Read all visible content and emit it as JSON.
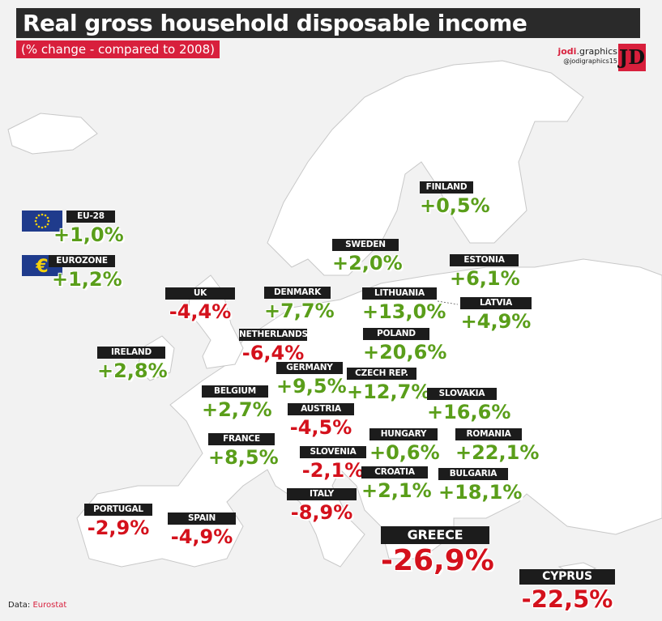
{
  "header": {
    "title": "Real gross household disposable income",
    "subtitle": "(% change - compared to 2008)"
  },
  "brand": {
    "name_bold": "jodi",
    "name_rest": ".graphics",
    "handle": "@jodigraphics15",
    "logo_text": "JD"
  },
  "source": {
    "label": "Data:",
    "name": "Eurostat"
  },
  "colors": {
    "positive": "#5a9e1a",
    "negative": "#d4111c",
    "accent": "#d81f3c",
    "label_bg": "#1c1c1c",
    "map_fill": "#ffffff",
    "sea": "#f2f2f2"
  },
  "aggregates": [
    {
      "id": "eu28",
      "name": "EU-28",
      "value": "+1,0%",
      "icon": "eu-flag-icon"
    },
    {
      "id": "eurozone",
      "name": "EUROZONE",
      "value": "+1,2%",
      "icon": "euro-sign-icon"
    }
  ],
  "countries": [
    {
      "id": "finland",
      "name": "FINLAND",
      "value": "+0,5%"
    },
    {
      "id": "sweden",
      "name": "SWEDEN",
      "value": "+2,0%"
    },
    {
      "id": "estonia",
      "name": "ESTONIA",
      "value": "+6,1%"
    },
    {
      "id": "uk",
      "name": "UK",
      "value": "-4,4%"
    },
    {
      "id": "denmark",
      "name": "DENMARK",
      "value": "+7,7%"
    },
    {
      "id": "lithuania",
      "name": "LITHUANIA",
      "value": "+13,0%"
    },
    {
      "id": "latvia",
      "name": "LATVIA",
      "value": "+4,9%"
    },
    {
      "id": "netherlands",
      "name": "NETHERLANDS",
      "value": "-6,4%"
    },
    {
      "id": "poland",
      "name": "POLAND",
      "value": "+20,6%"
    },
    {
      "id": "ireland",
      "name": "IRELAND",
      "value": "+2,8%"
    },
    {
      "id": "germany",
      "name": "GERMANY",
      "value": "+9,5%"
    },
    {
      "id": "czech",
      "name": "CZECH REP.",
      "value": "+12,7%"
    },
    {
      "id": "belgium",
      "name": "BELGIUM",
      "value": "+2,7%"
    },
    {
      "id": "austria",
      "name": "AUSTRIA",
      "value": "-4,5%"
    },
    {
      "id": "slovakia",
      "name": "SLOVAKIA",
      "value": "+16,6%"
    },
    {
      "id": "france",
      "name": "FRANCE",
      "value": "+8,5%"
    },
    {
      "id": "hungary",
      "name": "HUNGARY",
      "value": "+0,6%"
    },
    {
      "id": "romania",
      "name": "ROMANIA",
      "value": "+22,1%"
    },
    {
      "id": "slovenia",
      "name": "SLOVENIA",
      "value": "-2,1%"
    },
    {
      "id": "croatia",
      "name": "CROATIA",
      "value": "+2,1%"
    },
    {
      "id": "bulgaria",
      "name": "BULGARIA",
      "value": "+18,1%"
    },
    {
      "id": "portugal",
      "name": "PORTUGAL",
      "value": "-2,9%"
    },
    {
      "id": "spain",
      "name": "SPAIN",
      "value": "-4,9%"
    },
    {
      "id": "italy",
      "name": "ITALY",
      "value": "-8,9%"
    },
    {
      "id": "greece",
      "name": "GREECE",
      "value": "-26,9%"
    },
    {
      "id": "cyprus",
      "name": "CYPRUS",
      "value": "-22,5%"
    }
  ]
}
